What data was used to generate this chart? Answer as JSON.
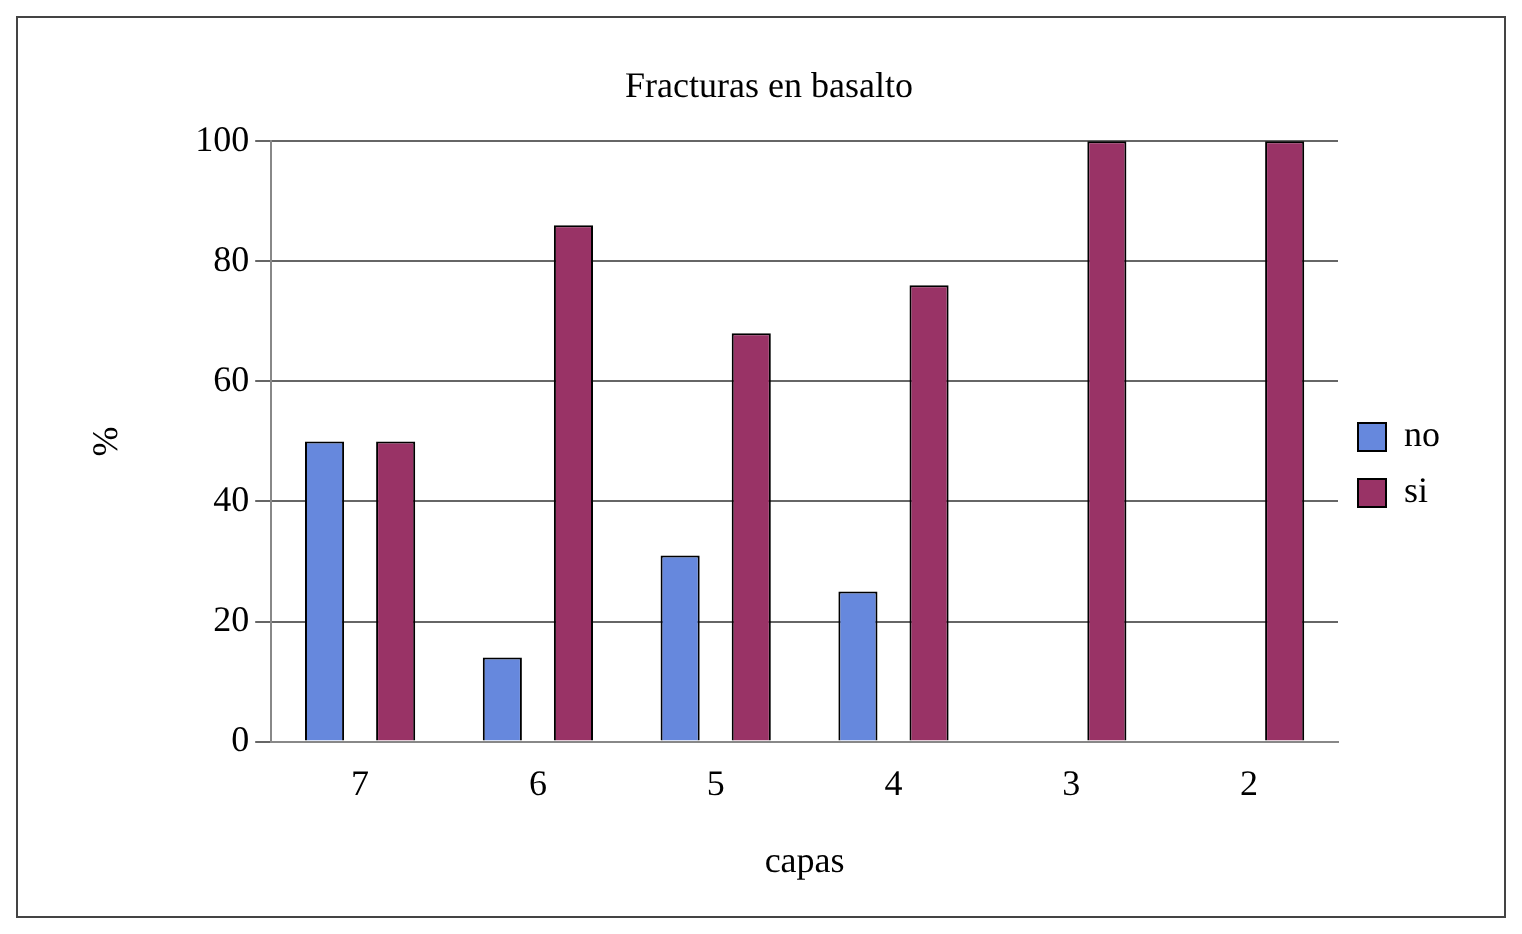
{
  "chart_data": {
    "type": "bar",
    "title": "Fracturas en basalto",
    "xlabel": "capas",
    "ylabel": "%",
    "categories": [
      "7",
      "6",
      "5",
      "4",
      "3",
      "2"
    ],
    "series": [
      {
        "name": "no",
        "color": "#6688dd",
        "values": [
          50,
          14,
          31,
          25,
          0,
          0
        ]
      },
      {
        "name": "si",
        "color": "#993366",
        "values": [
          50,
          86,
          68,
          76,
          100,
          100
        ]
      }
    ],
    "ylim": [
      0,
      100
    ],
    "yticks": [
      0,
      20,
      40,
      60,
      80,
      100
    ],
    "grid": "y",
    "legend": "right"
  }
}
